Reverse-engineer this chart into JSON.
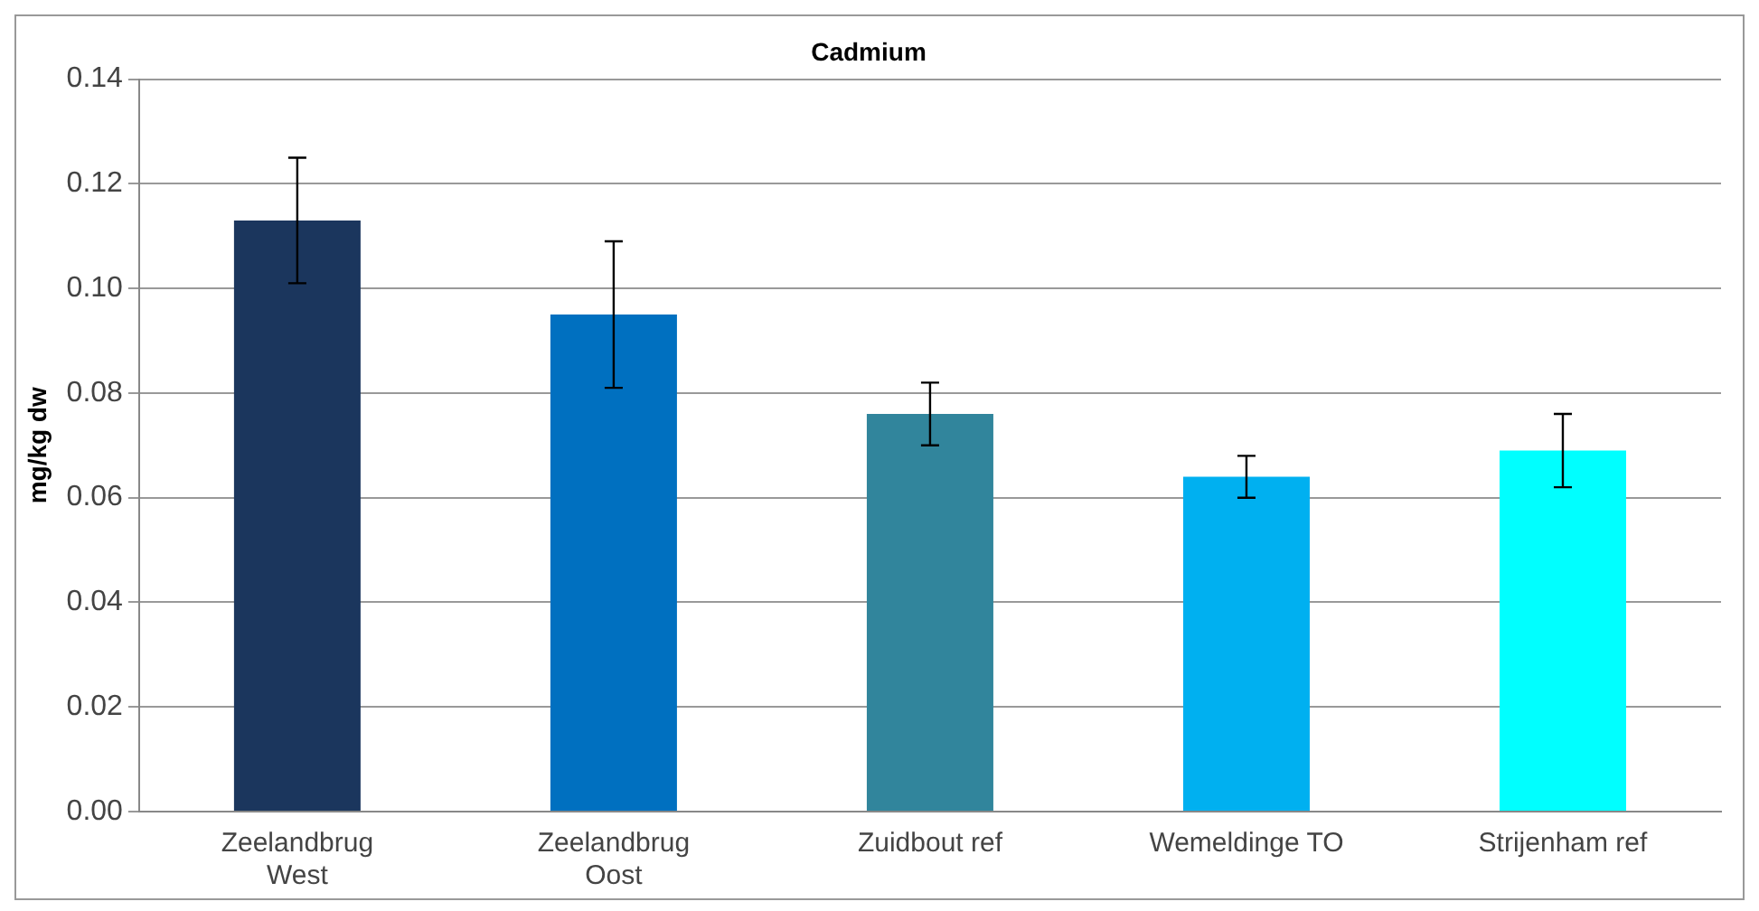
{
  "chart_data": {
    "type": "bar",
    "title": "Cadmium",
    "ylabel": "mg/kg dw",
    "categories": [
      "Zeelandbrug\nWest",
      "Zeelandbrug\nOost",
      "Zuidbout ref",
      "Wemeldinge TO",
      "Strijenham ref"
    ],
    "values": [
      0.113,
      0.095,
      0.076,
      0.064,
      0.069
    ],
    "errors": [
      0.012,
      0.014,
      0.006,
      0.004,
      0.007
    ],
    "colors": [
      "#1b365d",
      "#0070c0",
      "#31859c",
      "#00b0f0",
      "#00ffff"
    ],
    "ylim": [
      0,
      0.14
    ],
    "yticks": [
      {
        "value": 0,
        "label": "0.00"
      },
      0.02,
      0.04,
      0.06,
      0.08,
      {
        "value": 0.1,
        "label": "0.10"
      },
      0.12,
      0.14
    ],
    "grid": "y",
    "legend": false
  }
}
